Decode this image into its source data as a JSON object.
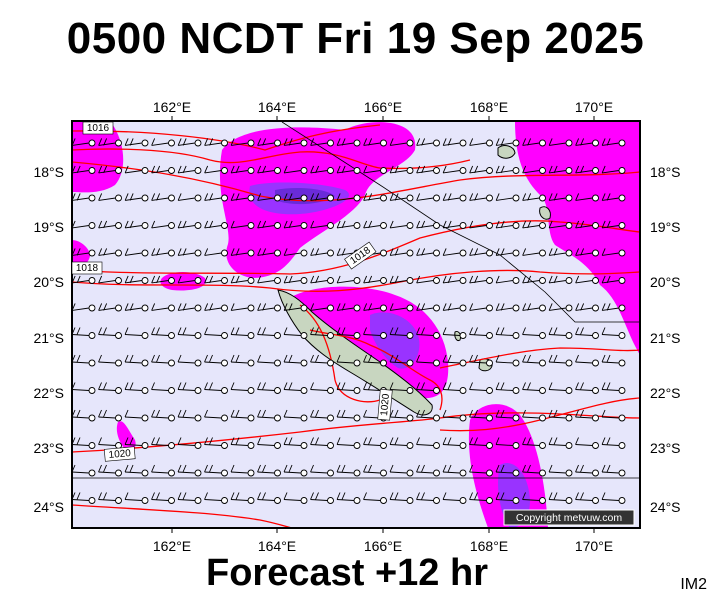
{
  "header": {
    "title": "0500 NCDT Fri 19 Sep 2025"
  },
  "footer": {
    "forecast": "Forecast +12 hr",
    "code": "IM2"
  },
  "map": {
    "lon_range": [
      160,
      171
    ],
    "lat_range": [
      -24.4,
      -17.0
    ],
    "lon_ticks": [
      "162°E",
      "164°E",
      "166°E",
      "168°E",
      "170°E"
    ],
    "lat_ticks": [
      "18°S",
      "19°S",
      "20°S",
      "21°S",
      "22°S",
      "23°S",
      "24°S"
    ],
    "isobar_labels": [
      "1016",
      "1018",
      "1018",
      "1020",
      "1020"
    ],
    "copyright": "Copyright metvuw.com",
    "colors": {
      "background": "#e6e6fb",
      "rain_light": "#ff00ff",
      "rain_medium": "#9933ff",
      "rain_heavy": "#6a2bd9",
      "isobar": "#ff0000",
      "land": "#c8d6c0"
    }
  }
}
